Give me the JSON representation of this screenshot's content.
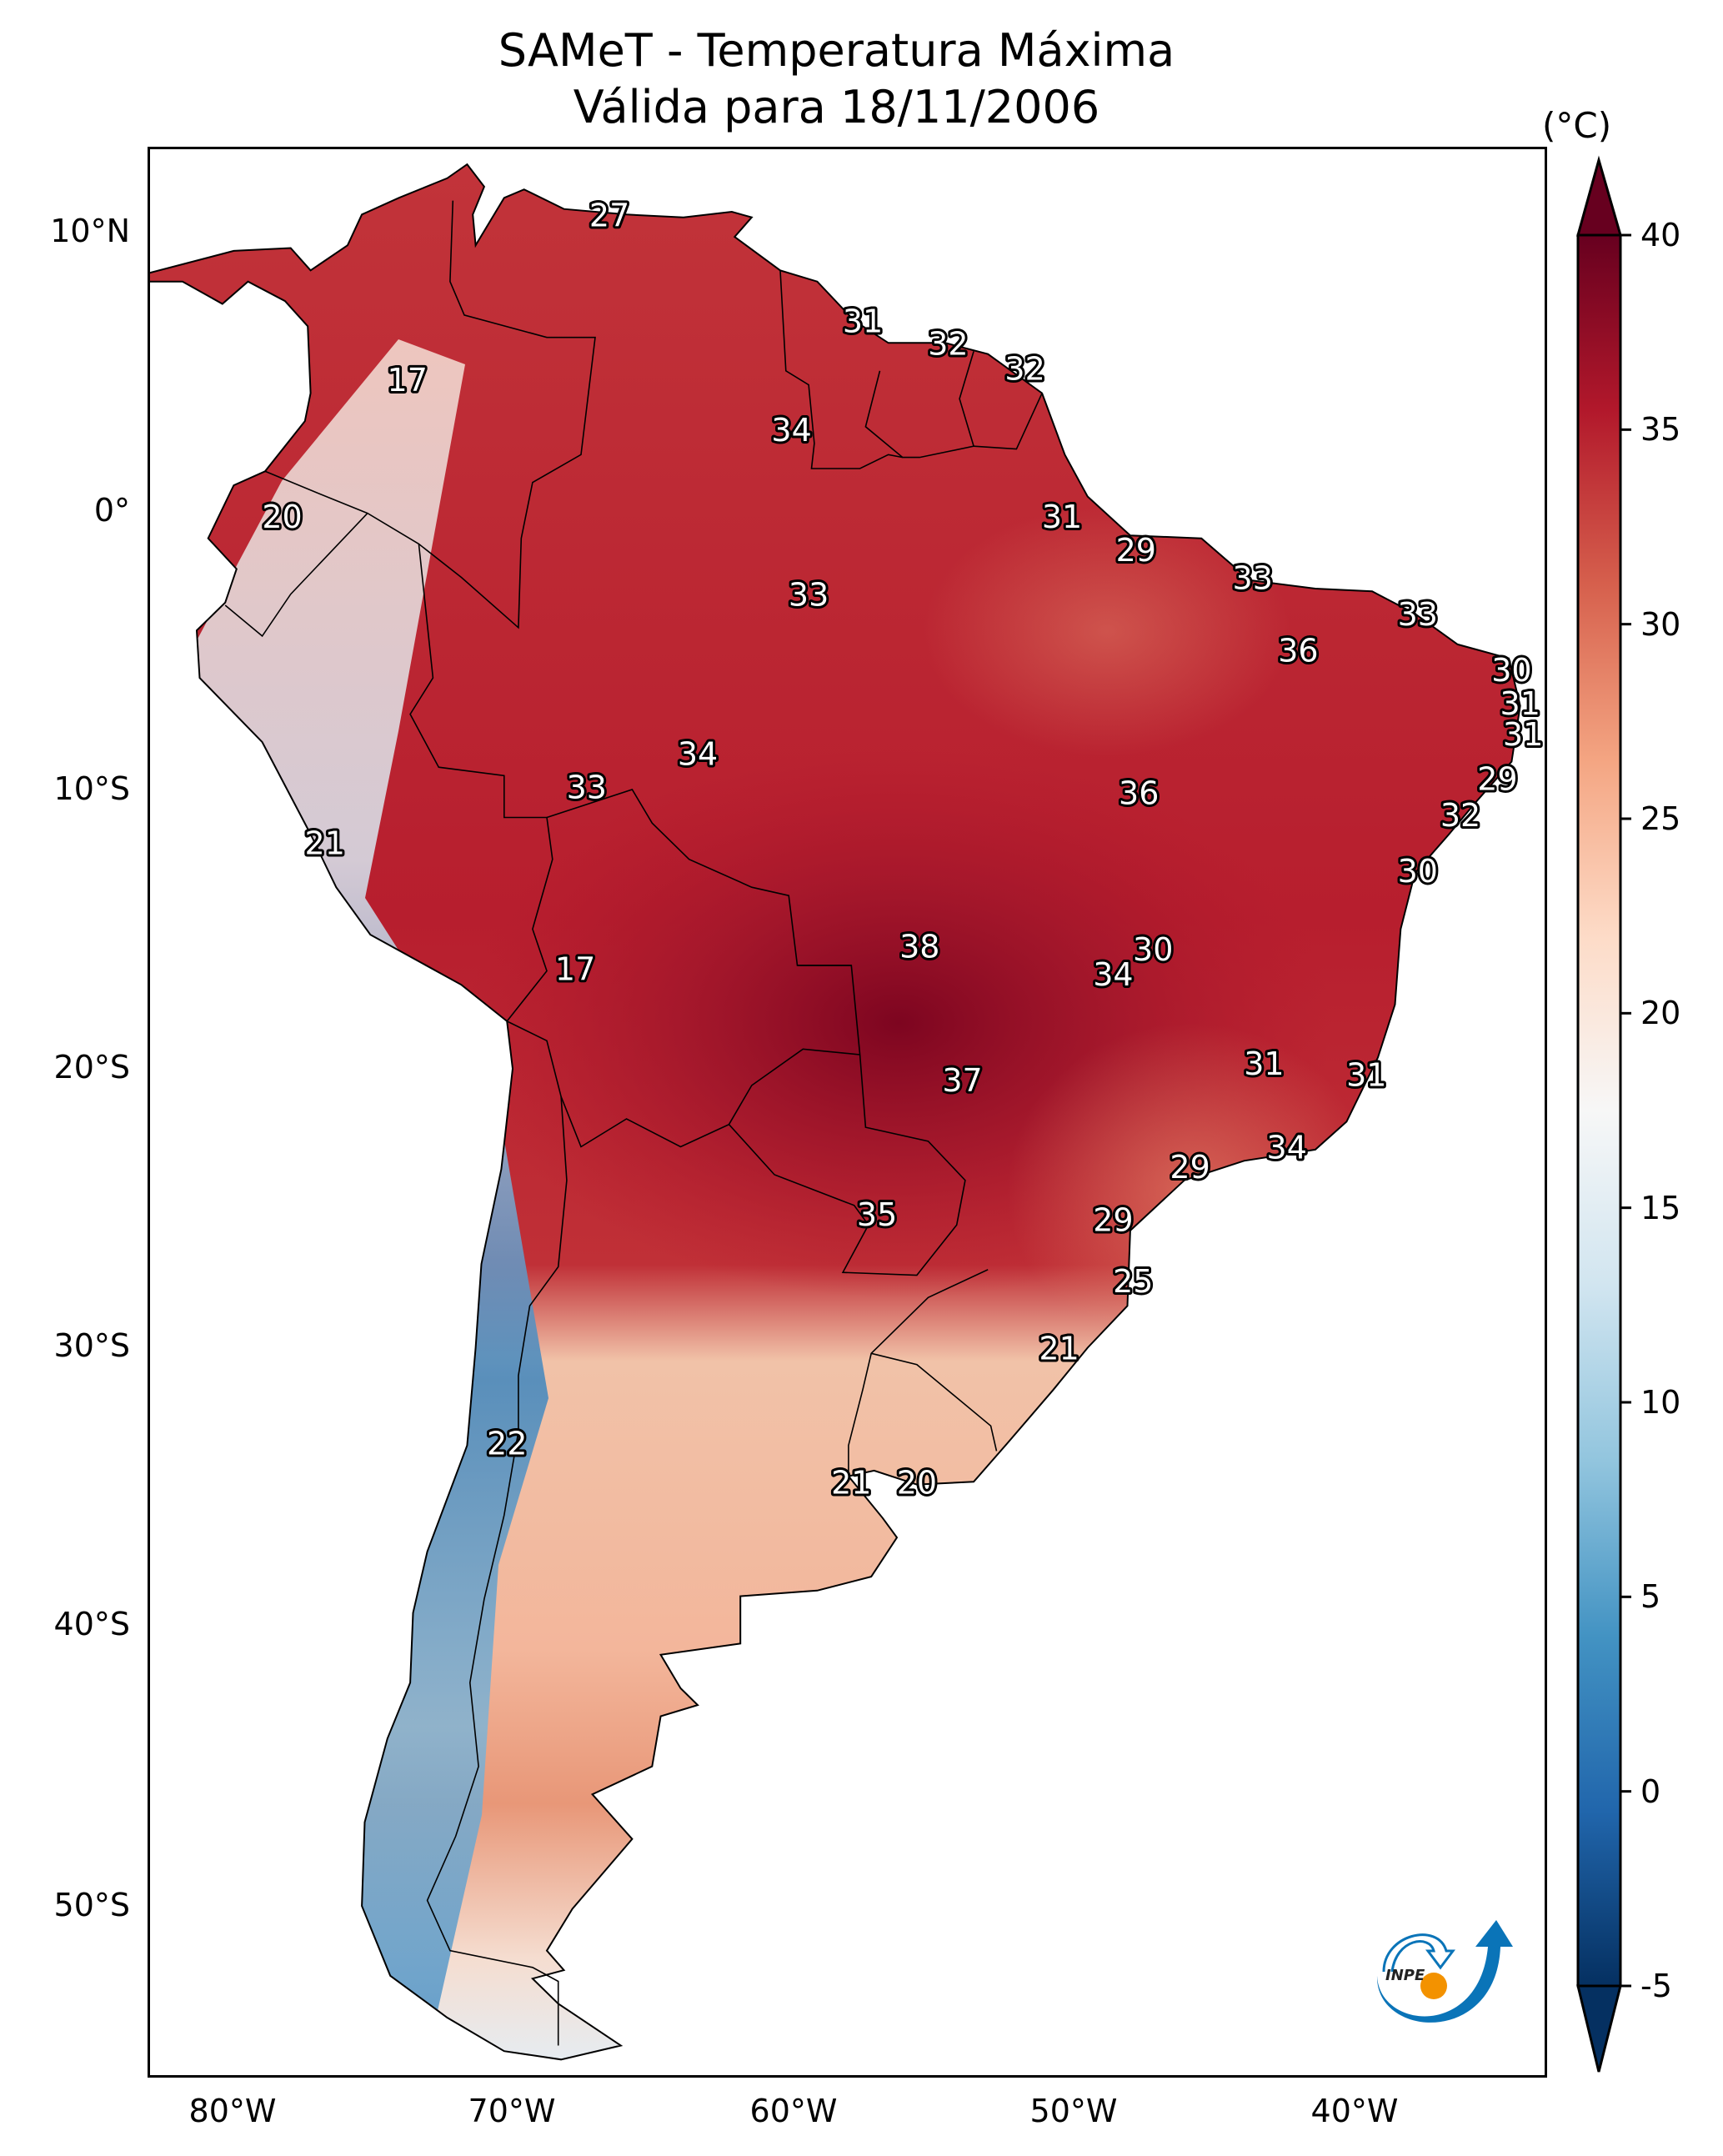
{
  "title": "SAMeT - Temperatura Máxima",
  "subtitle": "Válida para 18/11/2006",
  "colorbar": {
    "unit_label": "(°C)",
    "ticks": [
      "40",
      "35",
      "30",
      "25",
      "20",
      "15",
      "10",
      "5",
      "0",
      "-5"
    ],
    "min": -5,
    "max": 40,
    "extend": "both",
    "colormap": "RdBu_r",
    "colors": [
      "#053061",
      "#2166ac",
      "#4393c3",
      "#92c5de",
      "#d1e5f0",
      "#f7f7f7",
      "#fddbc7",
      "#f4a582",
      "#d6604d",
      "#b2182b",
      "#67001f"
    ]
  },
  "axes": {
    "lat_labels": [
      "10°N",
      "0°",
      "10°S",
      "20°S",
      "30°S",
      "40°S",
      "50°S"
    ],
    "lon_labels": [
      "80°W",
      "70°W",
      "60°W",
      "50°W",
      "40°W"
    ],
    "lat_range": [
      -56,
      13
    ],
    "lon_range": [
      -83,
      -34
    ]
  },
  "logo": {
    "text": "INPE",
    "primary_color": "#0a74b8",
    "accent_color": "#f39200"
  },
  "stations": [
    {
      "value": "27",
      "lon": -66.8,
      "lat": 10.6
    },
    {
      "value": "31",
      "lon": -57.9,
      "lat": 6.8
    },
    {
      "value": "32",
      "lon": -54.9,
      "lat": 6.0
    },
    {
      "value": "32",
      "lon": -52.2,
      "lat": 5.1
    },
    {
      "value": "17",
      "lon": -73.9,
      "lat": 4.7
    },
    {
      "value": "34",
      "lon": -60.4,
      "lat": 2.9
    },
    {
      "value": "20",
      "lon": -78.3,
      "lat": -0.2
    },
    {
      "value": "31",
      "lon": -50.9,
      "lat": -0.2
    },
    {
      "value": "29",
      "lon": -48.3,
      "lat": -1.4
    },
    {
      "value": "33",
      "lon": -44.2,
      "lat": -2.4
    },
    {
      "value": "33",
      "lon": -38.4,
      "lat": -3.7
    },
    {
      "value": "33",
      "lon": -59.8,
      "lat": -3.0
    },
    {
      "value": "36",
      "lon": -42.6,
      "lat": -5.0
    },
    {
      "value": "30",
      "lon": -35.1,
      "lat": -5.7
    },
    {
      "value": "31",
      "lon": -34.8,
      "lat": -6.9
    },
    {
      "value": "31",
      "lon": -34.7,
      "lat": -8.0
    },
    {
      "value": "34",
      "lon": -63.7,
      "lat": -8.7
    },
    {
      "value": "29",
      "lon": -35.6,
      "lat": -9.6
    },
    {
      "value": "33",
      "lon": -67.6,
      "lat": -9.9
    },
    {
      "value": "36",
      "lon": -48.2,
      "lat": -10.1
    },
    {
      "value": "32",
      "lon": -36.9,
      "lat": -10.9
    },
    {
      "value": "21",
      "lon": -76.8,
      "lat": -11.9
    },
    {
      "value": "30",
      "lon": -38.4,
      "lat": -12.9
    },
    {
      "value": "38",
      "lon": -55.9,
      "lat": -15.6
    },
    {
      "value": "30",
      "lon": -47.7,
      "lat": -15.7
    },
    {
      "value": "17",
      "lon": -68.0,
      "lat": -16.4
    },
    {
      "value": "34",
      "lon": -49.1,
      "lat": -16.6
    },
    {
      "value": "37",
      "lon": -54.4,
      "lat": -20.4
    },
    {
      "value": "31",
      "lon": -43.8,
      "lat": -19.8
    },
    {
      "value": "31",
      "lon": -40.2,
      "lat": -20.2
    },
    {
      "value": "34",
      "lon": -43.0,
      "lat": -22.8
    },
    {
      "value": "29",
      "lon": -46.4,
      "lat": -23.5
    },
    {
      "value": "35",
      "lon": -57.4,
      "lat": -25.2
    },
    {
      "value": "29",
      "lon": -49.1,
      "lat": -25.4
    },
    {
      "value": "25",
      "lon": -48.4,
      "lat": -27.6
    },
    {
      "value": "21",
      "lon": -51.0,
      "lat": -30.0
    },
    {
      "value": "22",
      "lon": -70.4,
      "lat": -33.4
    },
    {
      "value": "21",
      "lon": -58.3,
      "lat": -34.8
    },
    {
      "value": "20",
      "lon": -56.0,
      "lat": -34.8
    }
  ]
}
